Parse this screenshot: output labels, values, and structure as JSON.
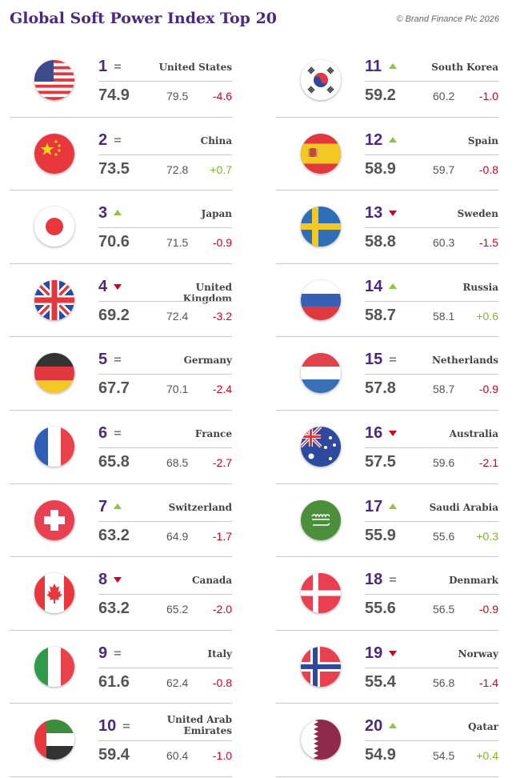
{
  "header": {
    "title": "Global Soft Power Index Top 20",
    "copyright": "© Brand Finance Plc 2026"
  },
  "colors": {
    "purple": "#4b2a7e",
    "up": "#8dc63f",
    "down": "#d6001c",
    "same": "#777777"
  },
  "entries": [
    {
      "rank": "1",
      "trend": "same",
      "country": "United States",
      "score": "74.9",
      "previous": "79.5",
      "change": "-4.6",
      "flag": "flag-united-states"
    },
    {
      "rank": "2",
      "trend": "same",
      "country": "China",
      "score": "73.5",
      "previous": "72.8",
      "change": "+0.7",
      "flag": "flag-china"
    },
    {
      "rank": "3",
      "trend": "up",
      "country": "Japan",
      "score": "70.6",
      "previous": "71.5",
      "change": "-0.9",
      "flag": "flag-japan"
    },
    {
      "rank": "4",
      "trend": "down",
      "country": "United Kingdom",
      "score": "69.2",
      "previous": "72.4",
      "change": "-3.2",
      "flag": "flag-united-kingdom"
    },
    {
      "rank": "5",
      "trend": "same",
      "country": "Germany",
      "score": "67.7",
      "previous": "70.1",
      "change": "-2.4",
      "flag": "flag-germany"
    },
    {
      "rank": "6",
      "trend": "same",
      "country": "France",
      "score": "65.8",
      "previous": "68.5",
      "change": "-2.7",
      "flag": "flag-france"
    },
    {
      "rank": "7",
      "trend": "up",
      "country": "Switzerland",
      "score": "63.2",
      "previous": "64.9",
      "change": "-1.7",
      "flag": "flag-switzerland"
    },
    {
      "rank": "8",
      "trend": "down",
      "country": "Canada",
      "score": "63.2",
      "previous": "65.2",
      "change": "-2.0",
      "flag": "flag-canada"
    },
    {
      "rank": "9",
      "trend": "same",
      "country": "Italy",
      "score": "61.6",
      "previous": "62.4",
      "change": "-0.8",
      "flag": "flag-italy"
    },
    {
      "rank": "10",
      "trend": "same",
      "country": "United Arab Emirates",
      "score": "59.4",
      "previous": "60.4",
      "change": "-1.0",
      "flag": "flag-uae"
    },
    {
      "rank": "11",
      "trend": "up",
      "country": "South Korea",
      "score": "59.2",
      "previous": "60.2",
      "change": "-1.0",
      "flag": "flag-south-korea"
    },
    {
      "rank": "12",
      "trend": "up",
      "country": "Spain",
      "score": "58.9",
      "previous": "59.7",
      "change": "-0.8",
      "flag": "flag-spain"
    },
    {
      "rank": "13",
      "trend": "down",
      "country": "Sweden",
      "score": "58.8",
      "previous": "60.3",
      "change": "-1.5",
      "flag": "flag-sweden"
    },
    {
      "rank": "14",
      "trend": "up",
      "country": "Russia",
      "score": "58.7",
      "previous": "58.1",
      "change": "+0.6",
      "flag": "flag-russia"
    },
    {
      "rank": "15",
      "trend": "same",
      "country": "Netherlands",
      "score": "57.8",
      "previous": "58.7",
      "change": "-0.9",
      "flag": "flag-netherlands"
    },
    {
      "rank": "16",
      "trend": "down",
      "country": "Australia",
      "score": "57.5",
      "previous": "59.6",
      "change": "-2.1",
      "flag": "flag-australia"
    },
    {
      "rank": "17",
      "trend": "up",
      "country": "Saudi Arabia",
      "score": "55.9",
      "previous": "55.6",
      "change": "+0.3",
      "flag": "flag-saudi-arabia"
    },
    {
      "rank": "18",
      "trend": "same",
      "country": "Denmark",
      "score": "55.6",
      "previous": "56.5",
      "change": "-0.9",
      "flag": "flag-denmark"
    },
    {
      "rank": "19",
      "trend": "down",
      "country": "Norway",
      "score": "55.4",
      "previous": "56.8",
      "change": "-1.4",
      "flag": "flag-norway"
    },
    {
      "rank": "20",
      "trend": "up",
      "country": "Qatar",
      "score": "54.9",
      "previous": "54.5",
      "change": "+0.4",
      "flag": "flag-qatar"
    }
  ]
}
